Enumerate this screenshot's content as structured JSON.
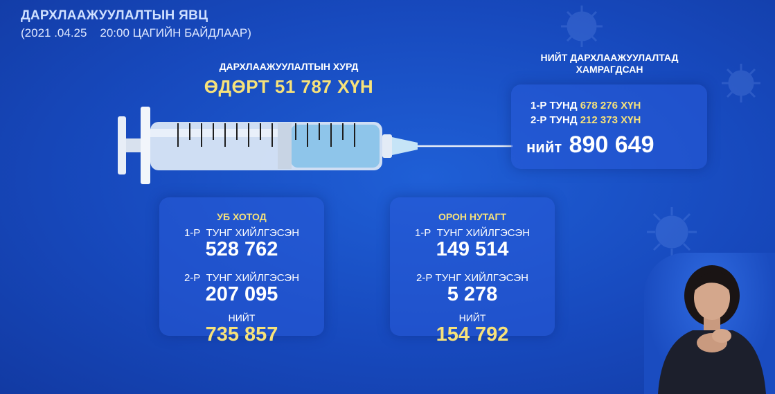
{
  "header": {
    "title": "ДАРХЛААЖУУЛАЛТЫН ЯВЦ",
    "subtitle": "(2021 .04.25    20:00 ЦАГИЙН БАЙДЛААР)"
  },
  "rate": {
    "label": "ДАРХЛААЖУУЛАЛТЫН ХУРД",
    "value": "ӨДӨРТ 51 787 ХҮН"
  },
  "total": {
    "heading_line1": "НИЙТ ДАРХЛААЖУУЛАЛТАД",
    "heading_line2": "ХАМРАГДСАН",
    "dose1_label": "1-Р ТУНД",
    "dose1_value": "678 276 ХҮН",
    "dose2_label": "2-Р ТУНД",
    "dose2_value": "212 373 ХҮН",
    "total_label": "нийт",
    "total_value": "890 649"
  },
  "ub": {
    "title": "УБ ХОТОД",
    "dose1_label": "1-Р  ТУНГ ХИЙЛГЭСЭН",
    "dose1_value": "528 762",
    "dose2_label": "2-Р  ТУНГ ХИЙЛГЭСЭН",
    "dose2_value": "207 095",
    "total_label": "НИЙТ",
    "total_value": "735 857"
  },
  "rural": {
    "title": "ОРОН НУТАГТ",
    "dose1_label": "1-Р  ТУНГ ХИЙЛГЭСЭН",
    "dose1_value": "149 514",
    "dose2_label": "2-Р ТУНГ ХИЙЛГЭСЭН",
    "dose2_value": "5 278",
    "total_label": "НИЙТ",
    "total_value": "154 792"
  },
  "colors": {
    "background": "#1749bd",
    "accent_yellow": "#f7e27a",
    "panel": "#285ad7"
  },
  "icons": [
    "syringe-icon",
    "virus-icon",
    "sign-language-interpreter"
  ]
}
